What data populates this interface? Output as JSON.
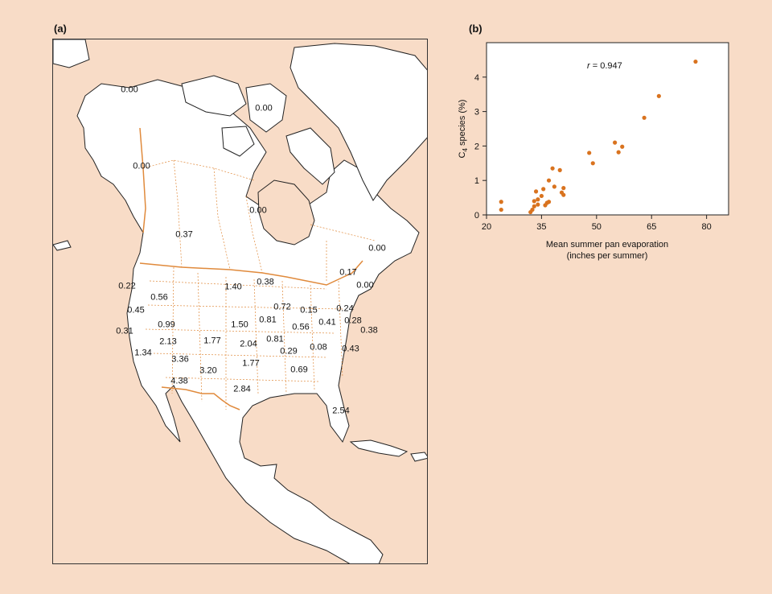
{
  "panels": {
    "a_label": "(a)",
    "b_label": "(b)"
  },
  "map": {
    "colors": {
      "land": "#ffffff",
      "ocean": "#f8dcc7",
      "border": "#e08a3c",
      "outline": "#222222"
    },
    "values": [
      {
        "id": "alaska-north",
        "text": "0.00"
      },
      {
        "id": "arctic-islands",
        "text": "0.00"
      },
      {
        "id": "yukon",
        "text": "0.00"
      },
      {
        "id": "hudson-bay",
        "text": "0.00"
      },
      {
        "id": "prairies",
        "text": "0.37"
      },
      {
        "id": "labrador",
        "text": "0.00"
      },
      {
        "id": "quebec-east",
        "text": "0.17"
      },
      {
        "id": "maritimes",
        "text": "0.00"
      },
      {
        "id": "washington",
        "text": "0.22"
      },
      {
        "id": "montana",
        "text": "0.56"
      },
      {
        "id": "dakota",
        "text": "1.40"
      },
      {
        "id": "minnesota",
        "text": "0.38"
      },
      {
        "id": "oregon",
        "text": "0.45"
      },
      {
        "id": "wisconsin",
        "text": "0.72"
      },
      {
        "id": "michigan",
        "text": "0.15"
      },
      {
        "id": "new-york",
        "text": "0.24"
      },
      {
        "id": "idaho",
        "text": "0.99"
      },
      {
        "id": "nebraska",
        "text": "1.50"
      },
      {
        "id": "iowa",
        "text": "0.81"
      },
      {
        "id": "ohio",
        "text": "0.41"
      },
      {
        "id": "pennsylvania",
        "text": "0.28"
      },
      {
        "id": "california-north",
        "text": "0.31"
      },
      {
        "id": "illinois",
        "text": "0.56"
      },
      {
        "id": "new-jersey",
        "text": "0.38"
      },
      {
        "id": "nevada",
        "text": "2.13"
      },
      {
        "id": "colorado",
        "text": "1.77"
      },
      {
        "id": "kansas",
        "text": "2.04"
      },
      {
        "id": "missouri",
        "text": "0.81"
      },
      {
        "id": "kentucky",
        "text": "0.29"
      },
      {
        "id": "virginia",
        "text": "0.08"
      },
      {
        "id": "carolina",
        "text": "0.43"
      },
      {
        "id": "california-south",
        "text": "1.34"
      },
      {
        "id": "arizona",
        "text": "3.36"
      },
      {
        "id": "oklahoma",
        "text": "1.77"
      },
      {
        "id": "new-mexico",
        "text": "3.20"
      },
      {
        "id": "georgia",
        "text": "0.69"
      },
      {
        "id": "baja",
        "text": "4.38"
      },
      {
        "id": "texas",
        "text": "2.84"
      },
      {
        "id": "florida",
        "text": "2.54"
      }
    ]
  },
  "chart_data": {
    "type": "scatter",
    "title": "",
    "annotation_r": "r",
    "annotation_value": " = 0.947",
    "xlabel_line1": "Mean summer pan evaporation",
    "xlabel_line2": "(inches per summer)",
    "ylabel_c": "C",
    "ylabel_sub": "4",
    "ylabel_rest": " species (%)",
    "xlim": [
      20,
      86
    ],
    "ylim": [
      0,
      5
    ],
    "xticks": [
      "20",
      "35",
      "50",
      "65",
      "80"
    ],
    "yticks": [
      "0",
      "1",
      "2",
      "3",
      "4"
    ],
    "point_color": "#d9731f",
    "points": [
      [
        24,
        0.38
      ],
      [
        24,
        0.15
      ],
      [
        32,
        0.08
      ],
      [
        32.5,
        0.15
      ],
      [
        33,
        0.25
      ],
      [
        33,
        0.4
      ],
      [
        33.5,
        0.68
      ],
      [
        34,
        0.3
      ],
      [
        34,
        0.45
      ],
      [
        35,
        0.55
      ],
      [
        35.5,
        0.75
      ],
      [
        36,
        0.28
      ],
      [
        36.5,
        0.35
      ],
      [
        37,
        0.38
      ],
      [
        37,
        1.0
      ],
      [
        38,
        1.35
      ],
      [
        38.5,
        0.82
      ],
      [
        40,
        1.3
      ],
      [
        40.5,
        0.65
      ],
      [
        41,
        0.78
      ],
      [
        41,
        0.58
      ],
      [
        48,
        1.8
      ],
      [
        49,
        1.5
      ],
      [
        55,
        2.1
      ],
      [
        56,
        1.82
      ],
      [
        57,
        1.98
      ],
      [
        63,
        2.82
      ],
      [
        67,
        3.45
      ],
      [
        77,
        4.45
      ]
    ]
  }
}
